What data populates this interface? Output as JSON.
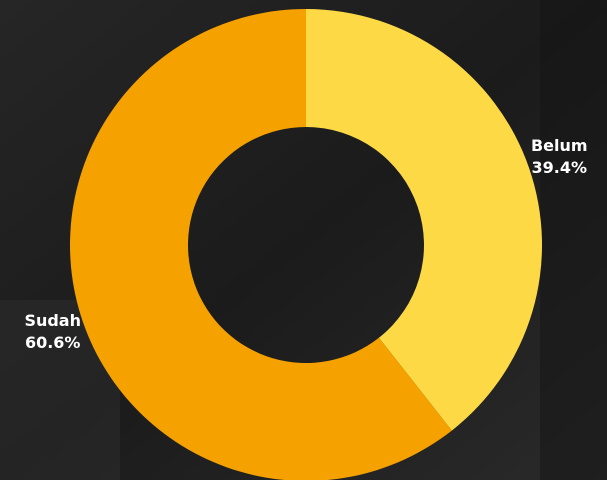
{
  "chart_data": {
    "type": "donut",
    "categories": [
      "Belum",
      "Sudah"
    ],
    "values": [
      39.4,
      60.6
    ],
    "value_labels": [
      "39.4%",
      "60.6%"
    ],
    "colors": [
      "#fdd945",
      "#f5a100"
    ]
  }
}
